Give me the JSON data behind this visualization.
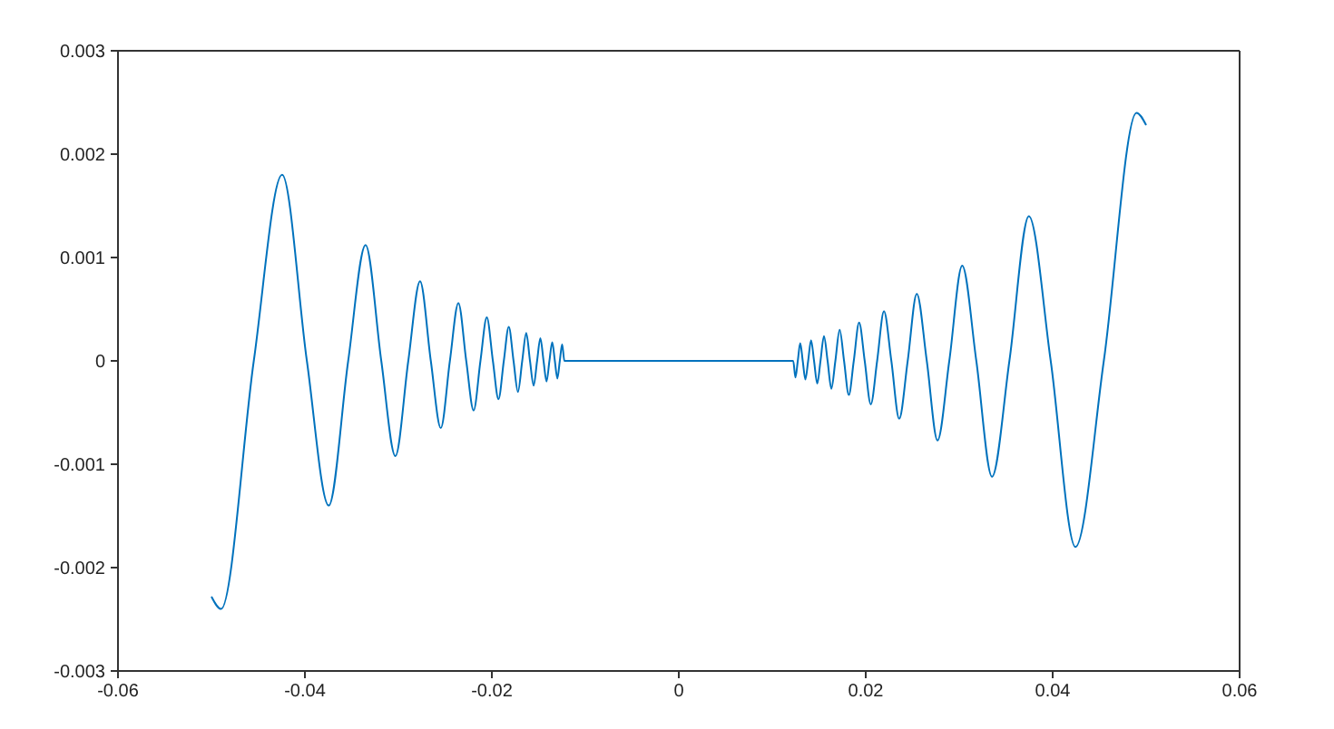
{
  "chart_data": {
    "type": "line",
    "xlim": [
      -0.06,
      0.06
    ],
    "ylim": [
      -0.003,
      0.003
    ],
    "xticks": [
      -0.06,
      -0.04,
      -0.02,
      0,
      0.02,
      0.04,
      0.06
    ],
    "yticks": [
      -0.003,
      -0.002,
      -0.001,
      0,
      0.001,
      0.002,
      0.003
    ],
    "marker": "none",
    "line_style": "solid",
    "x": [
      -0.05,
      -0.04897,
      -0.04547,
      -0.04244,
      -0.03979,
      -0.03745,
      -0.03537,
      -0.03351,
      -0.03183,
      -0.03032,
      -0.02894,
      -0.02768,
      -0.02653,
      -0.02546,
      -0.02449,
      -0.02358,
      -0.02274,
      -0.02195,
      -0.02122,
      -0.02054,
      -0.01989,
      -0.01929,
      -0.01872,
      -0.01819,
      -0.01768,
      -0.01721,
      -0.01675,
      -0.01632,
      -0.01592,
      -0.01553,
      -0.01516,
      -0.01481,
      -0.01447,
      -0.01415,
      -0.01384,
      -0.01354,
      -0.01326,
      -0.01299,
      -0.01273,
      -0.01248,
      -0.01224,
      0,
      0.01224,
      0.01248,
      0.01273,
      0.01299,
      0.01326,
      0.01354,
      0.01384,
      0.01415,
      0.01447,
      0.01481,
      0.01516,
      0.01553,
      0.01592,
      0.01632,
      0.01675,
      0.01721,
      0.01768,
      0.01819,
      0.01872,
      0.01929,
      0.01989,
      0.02054,
      0.02122,
      0.02195,
      0.02274,
      0.02358,
      0.02449,
      0.02546,
      0.02653,
      0.02768,
      0.02894,
      0.03032,
      0.03183,
      0.03351,
      0.03537,
      0.03745,
      0.03979,
      0.04244,
      0.04547,
      0.04897,
      0.05
    ],
    "series": [
      {
        "color": "#0072bd",
        "values": [
          -0.00228,
          -0.0024,
          0,
          0.0018,
          0,
          -0.0014,
          0,
          0.00112,
          0,
          -0.00092,
          0,
          0.00077,
          0,
          -0.00065,
          0,
          0.00056,
          0,
          -0.00048,
          0,
          0.00042,
          0,
          -0.00037,
          0,
          0.00033,
          0,
          -0.0003,
          0,
          0.00027,
          0,
          -0.00024,
          0,
          0.00022,
          0,
          -0.0002,
          0,
          0.00018,
          0,
          -0.00017,
          0,
          0.00016,
          0,
          0,
          0,
          -0.00016,
          0,
          0.00017,
          0,
          -0.00018,
          0,
          0.0002,
          0,
          -0.00022,
          0,
          0.00024,
          0,
          -0.00027,
          0,
          0.0003,
          0,
          -0.00033,
          0,
          0.00037,
          0,
          -0.00042,
          0,
          0.00048,
          0,
          -0.00056,
          0,
          0.00065,
          0,
          -0.00077,
          0,
          0.00092,
          0,
          -0.00112,
          0,
          0.0014,
          0,
          -0.0018,
          0,
          0.0024,
          0.00228
        ]
      }
    ]
  }
}
